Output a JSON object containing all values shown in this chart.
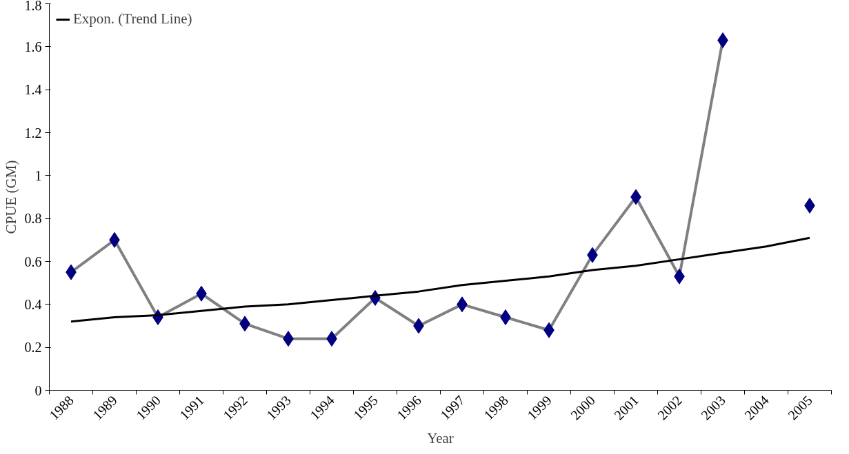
{
  "chart_data": {
    "type": "line",
    "xlabel": "Year",
    "ylabel": "CPUE (GM)",
    "categories": [
      "1988",
      "1989",
      "1990",
      "1991",
      "1992",
      "1993",
      "1994",
      "1995",
      "1996",
      "1997",
      "1998",
      "1999",
      "2000",
      "2001",
      "2002",
      "2003",
      "2004",
      "2005"
    ],
    "series": [
      {
        "color": "#808080",
        "marker": "diamond",
        "colors": [
          "#000080",
          "#000080",
          "#000080",
          "#000080",
          "#000080",
          "#000080",
          "#000080",
          "#000080",
          "#000080",
          "#000080",
          "#000080",
          "#000080",
          "#000080",
          "#000080",
          "#000080",
          "#000080",
          "#000080",
          "#000080"
        ],
        "values": [
          0.55,
          0.7,
          0.34,
          0.45,
          0.31,
          0.24,
          0.24,
          0.43,
          0.3,
          0.4,
          0.34,
          0.28,
          0.63,
          0.9,
          0.53,
          1.63,
          null,
          0.86
        ]
      },
      {
        "name": "Expon. (Trend Line)",
        "color": "#000000",
        "marker": "none",
        "values": [
          0.32,
          0.34,
          0.35,
          0.37,
          0.39,
          0.4,
          0.42,
          0.44,
          0.46,
          0.49,
          0.51,
          0.53,
          0.56,
          0.58,
          0.61,
          0.64,
          0.67,
          0.71
        ]
      }
    ],
    "ylim": [
      0,
      1.8
    ],
    "yticks": [
      0,
      0.2,
      0.4,
      0.6,
      0.8,
      1,
      1.2,
      1.4,
      1.6,
      1.8
    ],
    "grid": false,
    "legend": "top left"
  }
}
